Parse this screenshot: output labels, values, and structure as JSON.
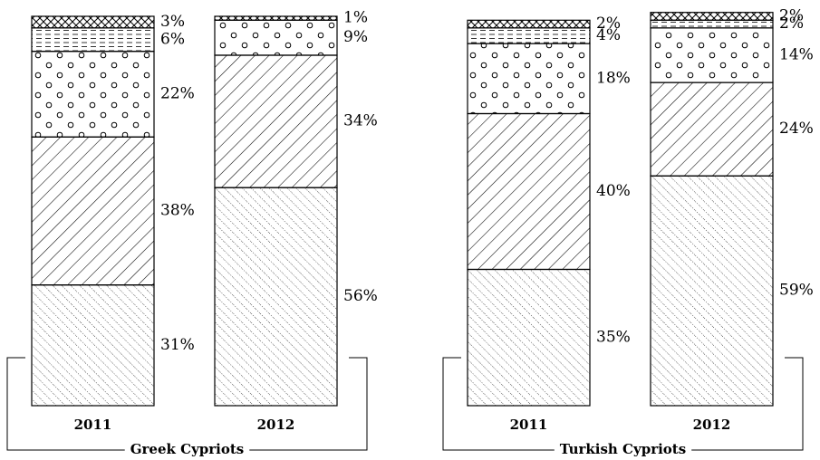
{
  "chart_data": [
    {
      "type": "stacked-bar",
      "group": "Greek Cypriots",
      "categories": [
        "2011",
        "2012"
      ],
      "ylim": [
        0,
        100
      ],
      "series": [
        {
          "pattern": "dotted-diagonal",
          "values": [
            31,
            56
          ],
          "value_labels": [
            "31%",
            "56%"
          ]
        },
        {
          "pattern": "diagonal",
          "values": [
            38,
            34
          ],
          "value_labels": [
            "38%",
            "34%"
          ]
        },
        {
          "pattern": "circles",
          "values": [
            22,
            9
          ],
          "value_labels": [
            "22%",
            "9%"
          ]
        },
        {
          "pattern": "dashed",
          "values": [
            6,
            null
          ],
          "value_labels": [
            "6%",
            null
          ]
        },
        {
          "pattern": "crosshatch",
          "values": [
            3,
            1
          ],
          "value_labels": [
            "3%",
            "1%"
          ]
        }
      ]
    },
    {
      "type": "stacked-bar",
      "group": "Turkish Cypriots",
      "categories": [
        "2011",
        "2012"
      ],
      "ylim": [
        0,
        100
      ],
      "series": [
        {
          "pattern": "dotted-diagonal",
          "values": [
            35,
            59
          ],
          "value_labels": [
            "35%",
            "59%"
          ]
        },
        {
          "pattern": "diagonal",
          "values": [
            40,
            24
          ],
          "value_labels": [
            "40%",
            "24%"
          ]
        },
        {
          "pattern": "circles",
          "values": [
            18,
            14
          ],
          "value_labels": [
            "18%",
            "14%"
          ]
        },
        {
          "pattern": "dashed",
          "values": [
            4,
            2
          ],
          "value_labels": [
            "4%",
            "2%"
          ]
        },
        {
          "pattern": "crosshatch",
          "values": [
            2,
            2
          ],
          "value_labels": [
            "2%",
            "2%"
          ]
        }
      ]
    }
  ]
}
